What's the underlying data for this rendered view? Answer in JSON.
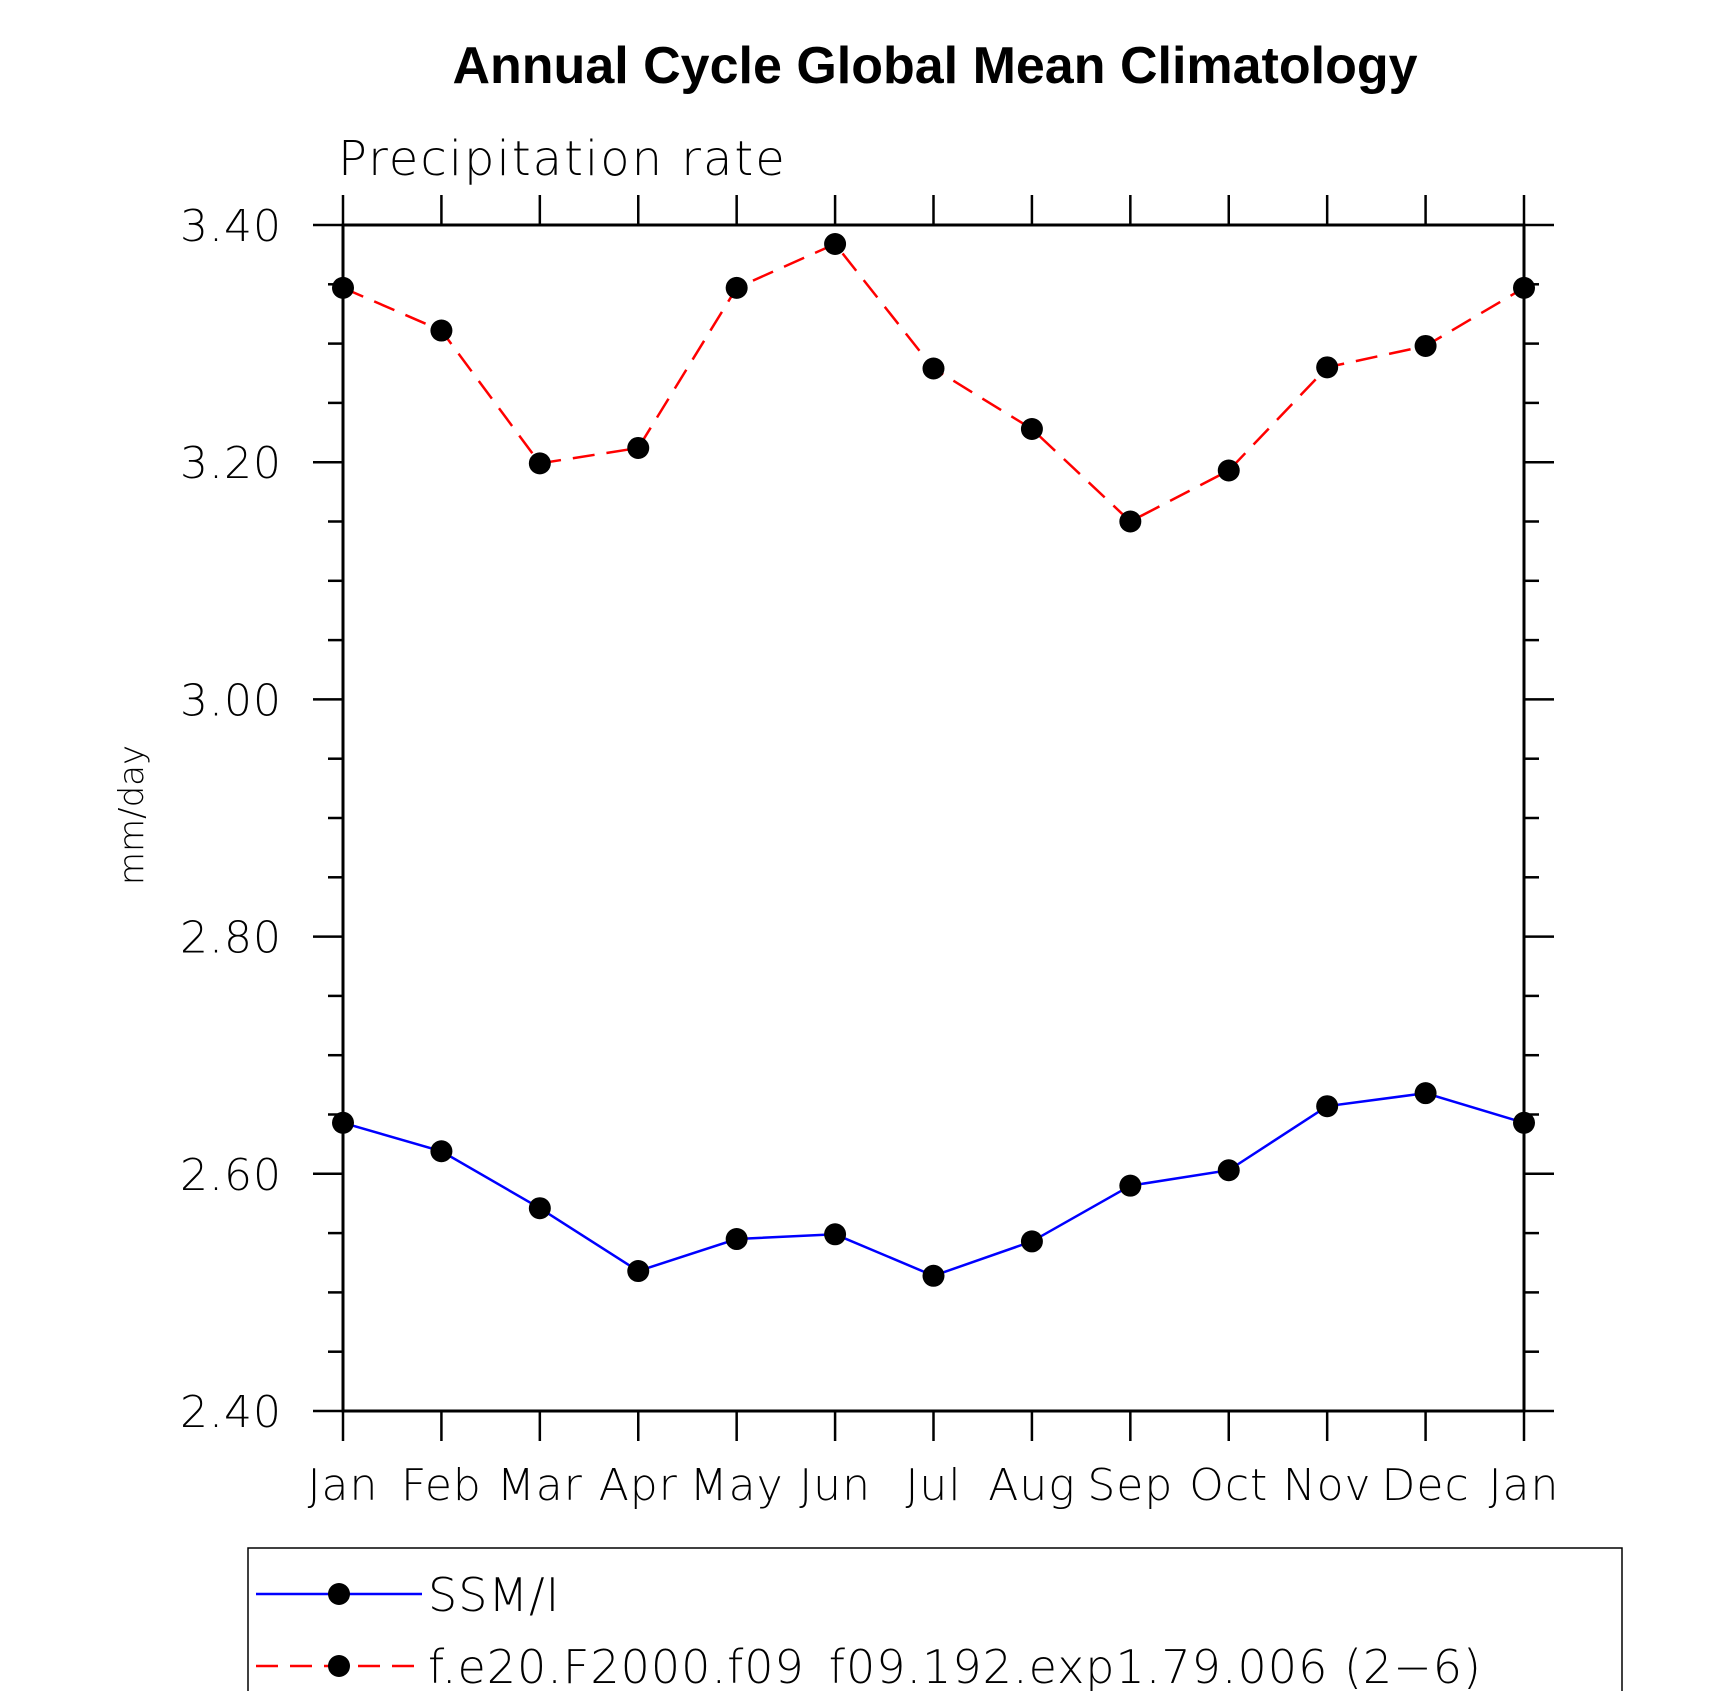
{
  "chart_data": {
    "type": "line",
    "title": "Annual Cycle Global Mean Climatology",
    "subtitle": "Precipitation rate",
    "ylabel": "mm/day",
    "xlabel": "",
    "categories": [
      "Jan",
      "Feb",
      "Mar",
      "Apr",
      "May",
      "Jun",
      "Jul",
      "Aug",
      "Sep",
      "Oct",
      "Nov",
      "Dec",
      "Jan"
    ],
    "ylim": [
      2.4,
      3.4
    ],
    "yticks": [
      "2.40",
      "2.60",
      "2.80",
      "3.00",
      "3.20",
      "3.40"
    ],
    "legend_position": "bottom",
    "series": [
      {
        "name": "SSM/I",
        "color": "#0000ff",
        "dash": "solid",
        "values": [
          2.643,
          2.619,
          2.571,
          2.518,
          2.545,
          2.549,
          2.514,
          2.543,
          2.59,
          2.603,
          2.657,
          2.668,
          2.643
        ]
      },
      {
        "name": "f.e20.F2000.f09_f09.192.exp1.79.006 (2−6)",
        "color": "#ff0000",
        "dash": "dashed",
        "values": [
          3.347,
          3.311,
          3.199,
          3.212,
          3.347,
          3.384,
          3.279,
          3.228,
          3.15,
          3.193,
          3.28,
          3.298,
          3.347
        ]
      }
    ]
  }
}
